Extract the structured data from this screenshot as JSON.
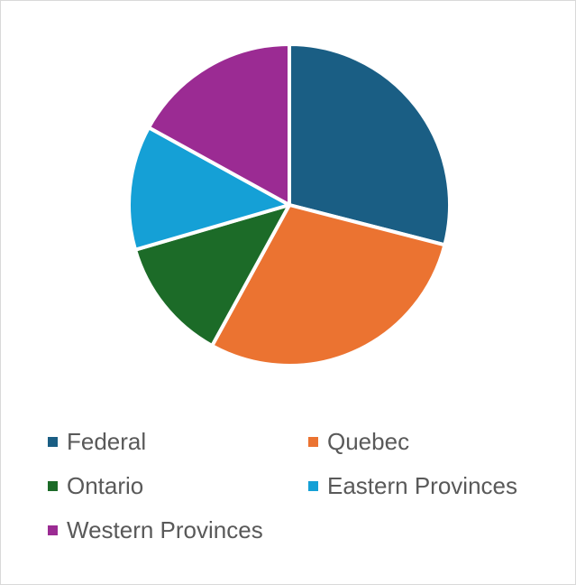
{
  "chart_data": {
    "type": "pie",
    "title": "",
    "categories": [
      "Federal",
      "Quebec",
      "Ontario",
      "Eastern Provinces",
      "Western Provinces"
    ],
    "values": [
      29,
      29,
      12.5,
      12.5,
      17
    ],
    "colors": [
      "#1a5e84",
      "#eb7331",
      "#1c6b28",
      "#15a0d6",
      "#9b2b93"
    ],
    "legend_position": "bottom",
    "slice_border_color": "#ffffff"
  }
}
